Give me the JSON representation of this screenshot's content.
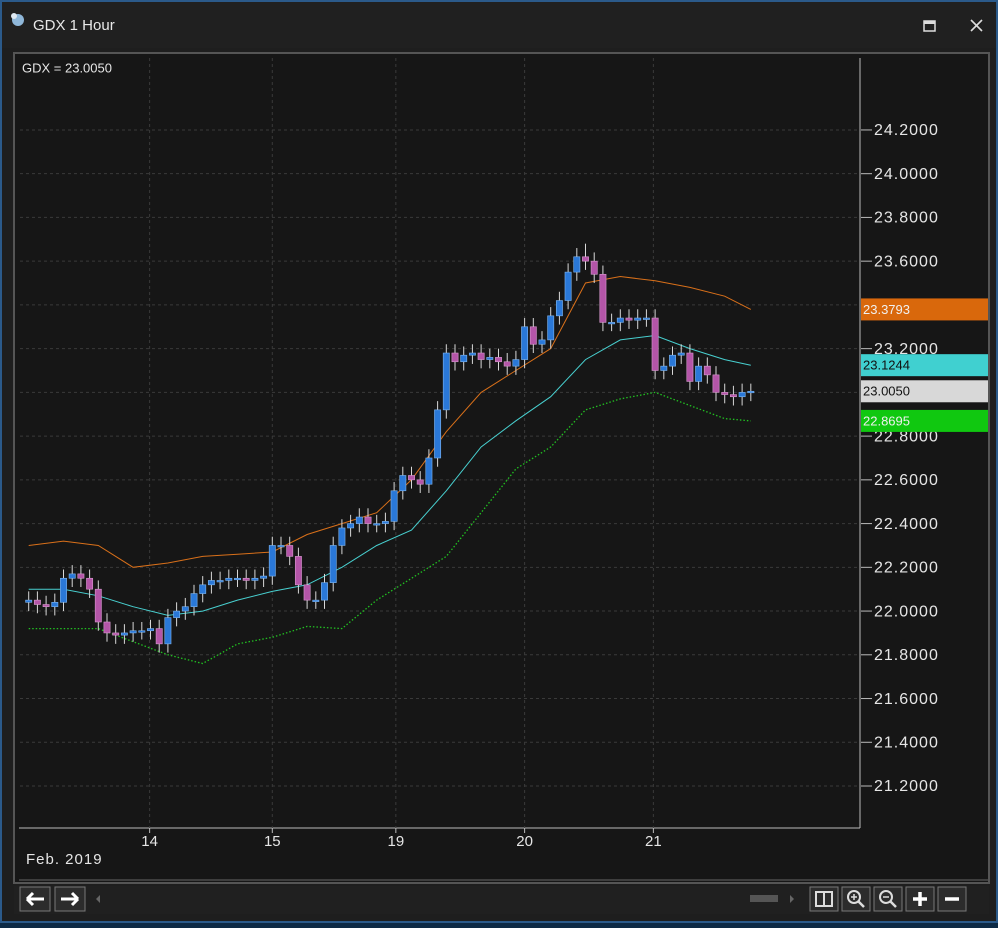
{
  "window": {
    "title": "GDX 1 Hour"
  },
  "chart_data": {
    "type": "candlestick",
    "last_label": "GDX = 23.0050",
    "date_label": "Feb. 2019",
    "up_color": "#2a78d8",
    "down_color": "#b455a8",
    "grid": true,
    "x": [
      1,
      2,
      3,
      4,
      5,
      6,
      7,
      8,
      9,
      10,
      11,
      12,
      13,
      14,
      15,
      16,
      17,
      18,
      19,
      20,
      21,
      22,
      23,
      24,
      25,
      26,
      27,
      28,
      29,
      30,
      31,
      32,
      33,
      34,
      35,
      36,
      37,
      38,
      39,
      40,
      41,
      42,
      43,
      44,
      45,
      46,
      47,
      48,
      49,
      50,
      51,
      52,
      53,
      54,
      55,
      56,
      57,
      58,
      59,
      60,
      61,
      62,
      63,
      64,
      65,
      66,
      67,
      68,
      69,
      70,
      71,
      72,
      73,
      74,
      75,
      76,
      77,
      78,
      79,
      80,
      81,
      82,
      83,
      84
    ],
    "open": [
      22.04,
      22.05,
      22.03,
      22.02,
      22.04,
      22.15,
      22.17,
      22.15,
      22.1,
      21.95,
      21.9,
      21.89,
      21.9,
      21.91,
      21.91,
      21.92,
      21.85,
      21.97,
      22.0,
      22.02,
      22.08,
      22.12,
      22.14,
      22.14,
      22.15,
      22.15,
      22.14,
      22.15,
      22.16,
      22.3,
      22.3,
      22.25,
      22.12,
      22.05,
      22.05,
      22.13,
      22.3,
      22.38,
      22.4,
      22.43,
      22.4,
      22.4,
      22.41,
      22.55,
      22.62,
      22.6,
      22.58,
      22.7,
      22.92,
      23.18,
      23.14,
      23.17,
      23.18,
      23.15,
      23.16,
      23.14,
      23.12,
      23.15,
      23.3,
      23.22,
      23.24,
      23.35,
      23.42,
      23.55,
      23.62,
      23.6,
      23.54,
      23.32,
      23.32,
      23.34,
      23.33,
      23.34,
      23.34,
      23.1,
      23.12,
      23.17,
      23.18,
      23.05,
      23.12,
      23.08,
      23.0,
      22.99,
      22.98,
      23.0
    ],
    "high": [
      22.09,
      22.09,
      22.07,
      22.08,
      22.19,
      22.21,
      22.21,
      22.19,
      22.14,
      21.99,
      21.94,
      21.94,
      21.95,
      21.95,
      21.96,
      21.96,
      22.01,
      22.04,
      22.06,
      22.12,
      22.16,
      22.18,
      22.18,
      22.19,
      22.19,
      22.19,
      22.19,
      22.2,
      22.34,
      22.34,
      22.34,
      22.29,
      22.16,
      22.09,
      22.17,
      22.34,
      22.42,
      22.44,
      22.47,
      22.47,
      22.44,
      22.45,
      22.59,
      22.66,
      22.66,
      22.64,
      22.74,
      22.96,
      23.22,
      23.22,
      23.21,
      23.22,
      23.22,
      23.2,
      23.2,
      23.18,
      23.19,
      23.34,
      23.34,
      23.28,
      23.39,
      23.46,
      23.59,
      23.66,
      23.68,
      23.64,
      23.58,
      23.36,
      23.38,
      23.38,
      23.38,
      23.38,
      23.38,
      23.16,
      23.21,
      23.22,
      23.22,
      23.16,
      23.16,
      23.12,
      23.04,
      23.03,
      23.04,
      23.04
    ],
    "low": [
      22.0,
      21.99,
      21.98,
      21.98,
      22.0,
      22.11,
      22.11,
      22.06,
      21.91,
      21.86,
      21.85,
      21.85,
      21.86,
      21.87,
      21.87,
      21.81,
      21.81,
      21.93,
      21.96,
      21.98,
      22.04,
      22.08,
      22.1,
      22.1,
      22.11,
      22.1,
      22.1,
      22.11,
      22.12,
      22.26,
      22.21,
      22.08,
      22.01,
      22.01,
      22.01,
      22.09,
      22.26,
      22.34,
      22.36,
      22.36,
      22.36,
      22.36,
      22.37,
      22.51,
      22.56,
      22.54,
      22.54,
      22.66,
      22.88,
      23.1,
      23.1,
      23.13,
      23.11,
      23.11,
      23.1,
      23.08,
      23.08,
      23.11,
      23.18,
      23.18,
      23.2,
      23.31,
      23.38,
      23.51,
      23.56,
      23.5,
      23.28,
      23.28,
      23.28,
      23.29,
      23.29,
      23.3,
      23.06,
      23.06,
      23.08,
      23.13,
      23.01,
      23.01,
      23.04,
      22.96,
      22.95,
      22.94,
      22.94,
      22.96
    ],
    "close": [
      22.05,
      22.03,
      22.02,
      22.04,
      22.15,
      22.17,
      22.15,
      22.1,
      21.95,
      21.9,
      21.89,
      21.9,
      21.91,
      21.91,
      21.92,
      21.85,
      21.97,
      22.0,
      22.02,
      22.08,
      22.12,
      22.14,
      22.14,
      22.15,
      22.15,
      22.14,
      22.15,
      22.16,
      22.3,
      22.3,
      22.25,
      22.12,
      22.05,
      22.05,
      22.13,
      22.3,
      22.38,
      22.4,
      22.43,
      22.4,
      22.4,
      22.41,
      22.55,
      22.62,
      22.6,
      22.58,
      22.7,
      22.92,
      23.18,
      23.14,
      23.17,
      23.18,
      23.15,
      23.16,
      23.14,
      23.12,
      23.15,
      23.3,
      23.22,
      23.24,
      23.35,
      23.42,
      23.55,
      23.62,
      23.6,
      23.54,
      23.32,
      23.32,
      23.34,
      23.33,
      23.34,
      23.34,
      23.1,
      23.12,
      23.17,
      23.18,
      23.05,
      23.12,
      23.08,
      23.0,
      22.99,
      22.98,
      23.0,
      23.005
    ],
    "lines": [
      {
        "color": "#d9701a",
        "dash": false,
        "x": [
          1,
          5,
          9,
          13,
          17,
          21,
          25,
          29,
          33,
          37,
          41,
          45,
          49,
          53,
          57,
          61,
          65,
          69,
          73,
          77,
          81,
          84
        ],
        "values": [
          22.3,
          22.32,
          22.3,
          22.2,
          22.22,
          22.25,
          22.26,
          22.27,
          22.35,
          22.4,
          22.45,
          22.6,
          22.82,
          23.0,
          23.1,
          23.2,
          23.5,
          23.53,
          23.51,
          23.48,
          23.44,
          23.3793
        ]
      },
      {
        "color": "#48d0d0",
        "dash": false,
        "x": [
          1,
          5,
          9,
          13,
          17,
          21,
          25,
          29,
          33,
          37,
          41,
          45,
          49,
          53,
          57,
          61,
          65,
          69,
          73,
          77,
          81,
          84
        ],
        "values": [
          22.1,
          22.1,
          22.07,
          22.02,
          21.98,
          22.0,
          22.05,
          22.09,
          22.12,
          22.2,
          22.3,
          22.37,
          22.55,
          22.75,
          22.87,
          22.98,
          23.15,
          23.24,
          23.26,
          23.2,
          23.15,
          23.1244
        ]
      },
      {
        "color": "#22c022",
        "dash": true,
        "x": [
          1,
          5,
          9,
          13,
          17,
          21,
          25,
          29,
          33,
          37,
          41,
          45,
          49,
          53,
          57,
          61,
          65,
          69,
          73,
          77,
          81,
          84
        ],
        "values": [
          21.92,
          21.92,
          21.92,
          21.86,
          21.8,
          21.76,
          21.85,
          21.88,
          21.93,
          21.92,
          22.05,
          22.15,
          22.25,
          22.45,
          22.65,
          22.75,
          22.92,
          22.97,
          23.0,
          22.94,
          22.88,
          22.8695
        ]
      }
    ],
    "price_tags": [
      {
        "value": 23.3793,
        "label": "23.3793",
        "color": "#d9680c"
      },
      {
        "value": 23.1244,
        "label": "23.1244",
        "color": "#40d0d0"
      },
      {
        "value": 23.005,
        "label": "23.0050",
        "color": "#d8d8d8"
      },
      {
        "value": 22.8695,
        "label": "22.8695",
        "color": "#10c810"
      }
    ],
    "xlim": [
      0,
      96.55
    ],
    "xticks": [
      {
        "value": 14.9,
        "label": "14"
      },
      {
        "value": 29.0,
        "label": "15"
      },
      {
        "value": 43.2,
        "label": "19"
      },
      {
        "value": 58.0,
        "label": "20"
      },
      {
        "value": 72.8,
        "label": "21"
      }
    ],
    "ylim": [
      21.008,
      24.529
    ],
    "yticks": [
      {
        "value": 24.2,
        "label": "24.2000"
      },
      {
        "value": 24.0,
        "label": "24.0000"
      },
      {
        "value": 23.8,
        "label": "23.8000"
      },
      {
        "value": 23.6,
        "label": "23.6000"
      },
      {
        "value": 23.4,
        "label": "23.4000"
      },
      {
        "value": 23.2,
        "label": "23.2000"
      },
      {
        "value": 23.0,
        "label": "23.0000"
      },
      {
        "value": 22.8,
        "label": "22.8000"
      },
      {
        "value": 22.6,
        "label": "22.6000"
      },
      {
        "value": 22.4,
        "label": "22.4000"
      },
      {
        "value": 22.2,
        "label": "22.2000"
      },
      {
        "value": 22.0,
        "label": "22.0000"
      },
      {
        "value": 21.8,
        "label": "21.8000"
      },
      {
        "value": 21.6,
        "label": "21.6000"
      },
      {
        "value": 21.4,
        "label": "21.4000"
      },
      {
        "value": 21.2,
        "label": "21.2000"
      }
    ]
  }
}
